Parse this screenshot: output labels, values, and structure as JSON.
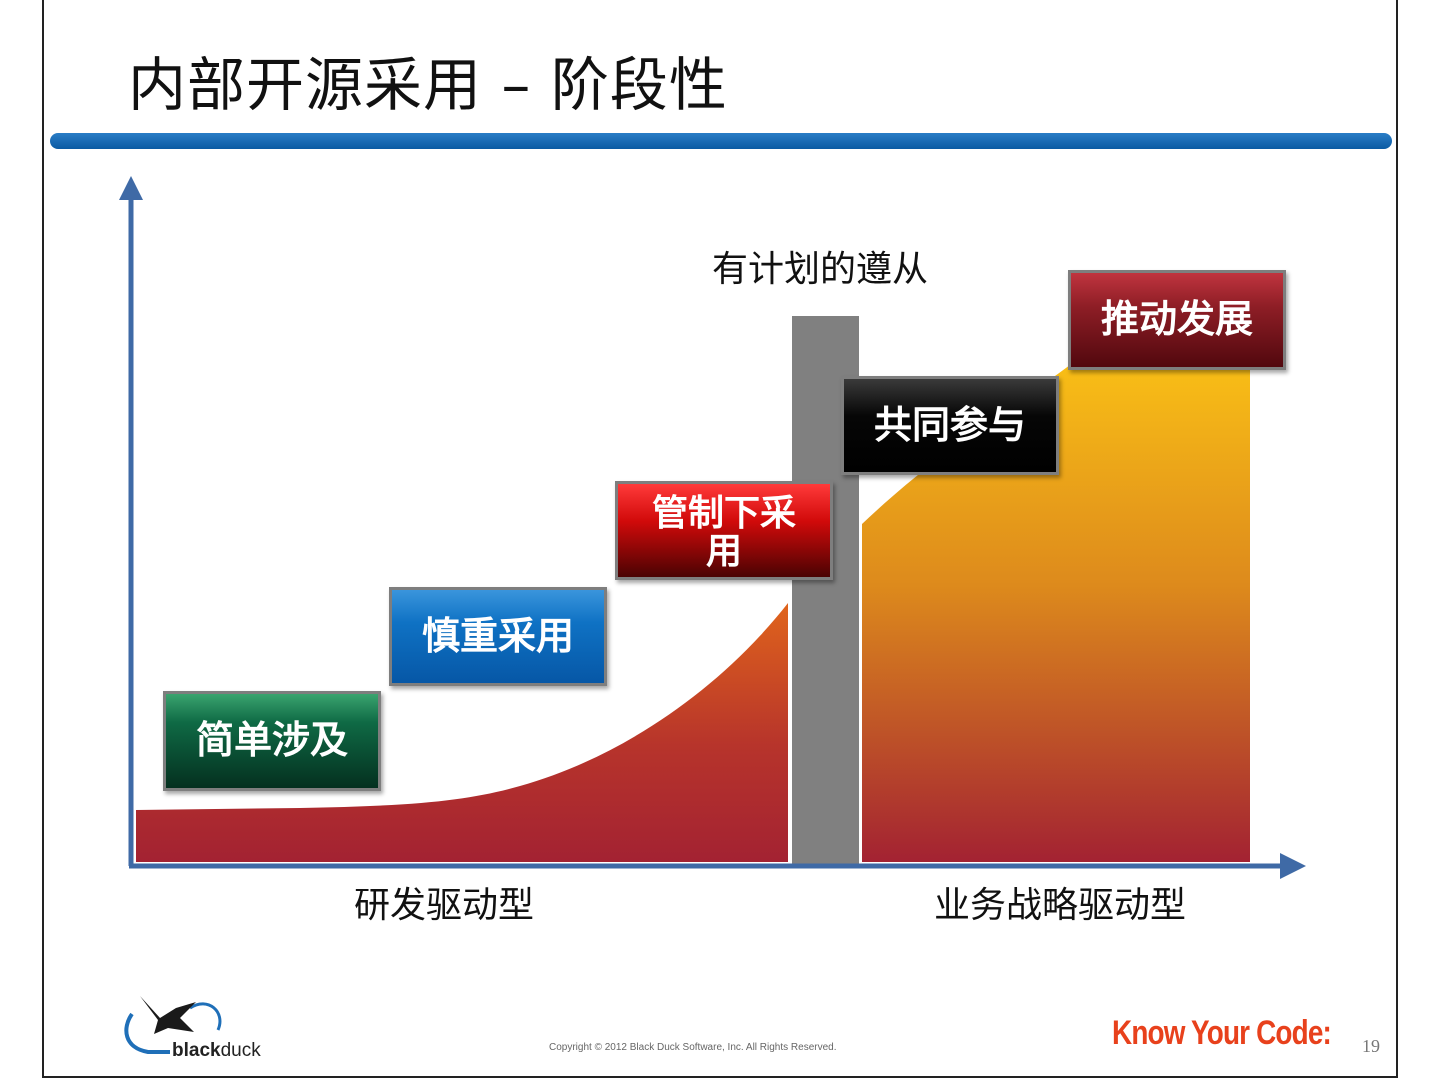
{
  "title": "内部开源采用 – 阶段性",
  "steps": [
    {
      "label": "简单涉及",
      "color": "#0f6a45"
    },
    {
      "label": "慎重采用",
      "color": "#0f72c4"
    },
    {
      "label": "管制下采用",
      "color": "#d10a0a"
    },
    {
      "label": "共同参与",
      "color": "#060606"
    },
    {
      "label": "推动发展",
      "color": "#8f1e26"
    }
  ],
  "divider_label": "有计划的遵从",
  "axis_labels": {
    "left": "研发驱动型",
    "right": "业务战略驱动型"
  },
  "footer": {
    "logo_text_bold": "black",
    "logo_text_regular": "duck",
    "copyright": "Copyright © 2012 Black Duck Software, Inc.  All Rights Reserved.",
    "tagline": "Know Your Code:",
    "page_number": "19"
  },
  "colors": {
    "accent_blue": "#0b5aa3",
    "axis": "#3f6aa6",
    "curve_low": "#a32232",
    "curve_high": "#f7b918",
    "divider": "#808080",
    "tagline": "#e8411c"
  }
}
